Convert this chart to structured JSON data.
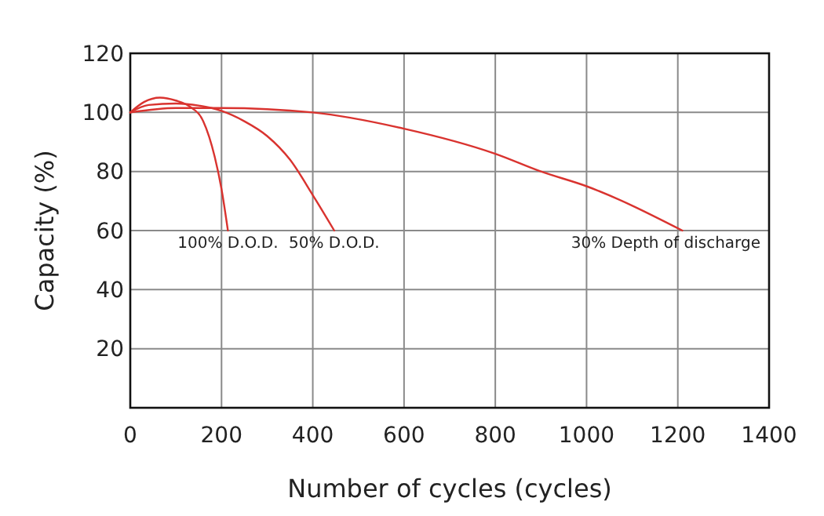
{
  "chart_data": {
    "type": "line",
    "xlabel": "Number of cycles (cycles)",
    "ylabel": "Capacity (%)",
    "xlim": [
      0,
      1400
    ],
    "xticks": [
      0,
      200,
      400,
      600,
      800,
      1000,
      1200,
      1400
    ],
    "ylim": [
      0,
      120
    ],
    "yticks": [
      20,
      40,
      60,
      80,
      100,
      120
    ],
    "grid": true,
    "line_style": "solid",
    "marker": "none",
    "series": [
      {
        "color": "#d9332f",
        "x": [
          0,
          30,
          65,
          100,
          130,
          160,
          185,
          200,
          214
        ],
        "values": [
          100,
          103.5,
          105,
          104,
          102,
          97,
          85,
          74,
          60
        ]
      },
      {
        "color": "#d9332f",
        "x": [
          0,
          40,
          100,
          150,
          200,
          250,
          300,
          350,
          400,
          447
        ],
        "values": [
          100,
          102.5,
          103,
          102.3,
          100.5,
          97,
          92,
          84,
          72,
          60
        ]
      },
      {
        "color": "#d9332f",
        "x": [
          0,
          100,
          200,
          400,
          600,
          800,
          900,
          1000,
          1210
        ],
        "values": [
          100,
          101.5,
          101.5,
          100,
          94.5,
          86,
          80,
          75,
          60
        ]
      }
    ],
    "annotations": [
      {
        "text": "100% D.O.D.",
        "x": 214,
        "y": 60
      },
      {
        "text": "50% D.O.D.",
        "x": 447,
        "y": 60
      },
      {
        "text": "30% Depth of discharge",
        "x": 1210,
        "y": 60
      }
    ]
  }
}
